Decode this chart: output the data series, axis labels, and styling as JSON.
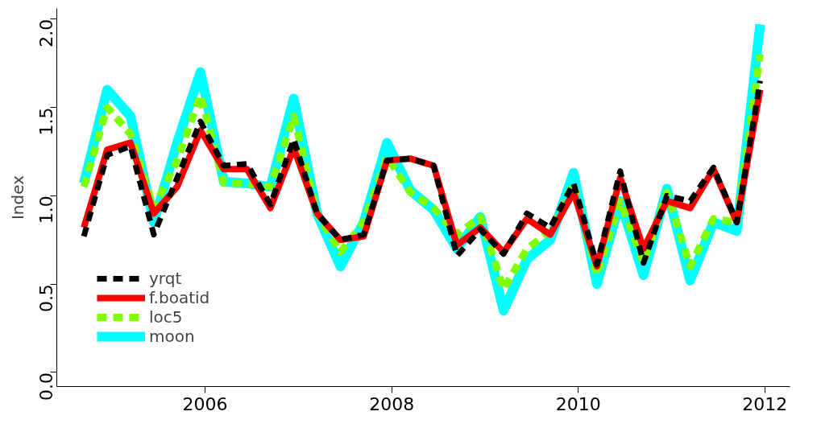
{
  "chart_data": {
    "type": "line",
    "ylabel": "Index",
    "x": [
      2004.7,
      2004.95,
      2005.2,
      2005.45,
      2005.7,
      2005.95,
      2006.2,
      2006.45,
      2006.7,
      2006.95,
      2007.2,
      2007.45,
      2007.7,
      2007.95,
      2008.2,
      2008.45,
      2008.7,
      2008.95,
      2009.2,
      2009.45,
      2009.7,
      2009.95,
      2010.2,
      2010.45,
      2010.7,
      2010.95,
      2011.2,
      2011.45,
      2011.7,
      2011.95
    ],
    "xlim": [
      2004.41,
      2012.27
    ],
    "xticks": [
      2006,
      2008,
      2010,
      2012
    ],
    "ylim": [
      -0.08,
      2.06
    ],
    "yticks": [
      {
        "value": 0,
        "label": "0.0"
      },
      {
        "value": 0.5,
        "label": "0.5"
      },
      {
        "value": 1,
        "label": "1.0"
      },
      {
        "value": 1.5,
        "label": "1.5"
      },
      {
        "value": 2,
        "label": "2.0"
      }
    ],
    "grid": false,
    "legend": "bottom left",
    "series": [
      {
        "name": "yrqt",
        "color": "#000000",
        "line_style": "dashed",
        "values": [
          0.77,
          1.23,
          1.28,
          0.78,
          1.1,
          1.42,
          1.17,
          1.18,
          0.95,
          1.32,
          0.9,
          0.75,
          0.78,
          1.2,
          1.21,
          1.17,
          0.66,
          0.81,
          0.67,
          0.9,
          0.82,
          1.07,
          0.61,
          1.14,
          0.62,
          1.0,
          0.97,
          1.16,
          0.85,
          1.65
        ]
      },
      {
        "name": "f.boatid",
        "color": "#ff0000",
        "line_style": "solid",
        "values": [
          0.82,
          1.26,
          1.3,
          0.9,
          1.05,
          1.37,
          1.15,
          1.15,
          0.93,
          1.27,
          0.9,
          0.75,
          0.77,
          1.2,
          1.21,
          1.17,
          0.72,
          0.82,
          0.68,
          0.87,
          0.78,
          1.02,
          0.6,
          1.1,
          0.7,
          0.97,
          0.93,
          1.15,
          0.85,
          1.6
        ]
      },
      {
        "name": "loc5",
        "color": "#7fff00",
        "line_style": "dashed",
        "values": [
          1.05,
          1.5,
          1.35,
          0.93,
          1.2,
          1.57,
          1.07,
          1.07,
          1.05,
          1.45,
          0.9,
          0.68,
          0.85,
          1.22,
          1.02,
          0.93,
          0.78,
          0.88,
          0.47,
          0.7,
          0.8,
          1.07,
          0.55,
          0.97,
          0.62,
          1.02,
          0.6,
          0.87,
          0.85,
          1.8
        ]
      },
      {
        "name": "moon",
        "color": "#00ffff",
        "line_style": "solid",
        "values": [
          1.07,
          1.6,
          1.45,
          0.85,
          1.3,
          1.7,
          1.08,
          1.07,
          1.05,
          1.55,
          0.9,
          0.6,
          0.85,
          1.3,
          1.03,
          0.92,
          0.7,
          0.88,
          0.35,
          0.64,
          0.75,
          1.13,
          0.5,
          0.97,
          0.55,
          1.04,
          0.52,
          0.85,
          0.8,
          1.97
        ]
      }
    ]
  }
}
